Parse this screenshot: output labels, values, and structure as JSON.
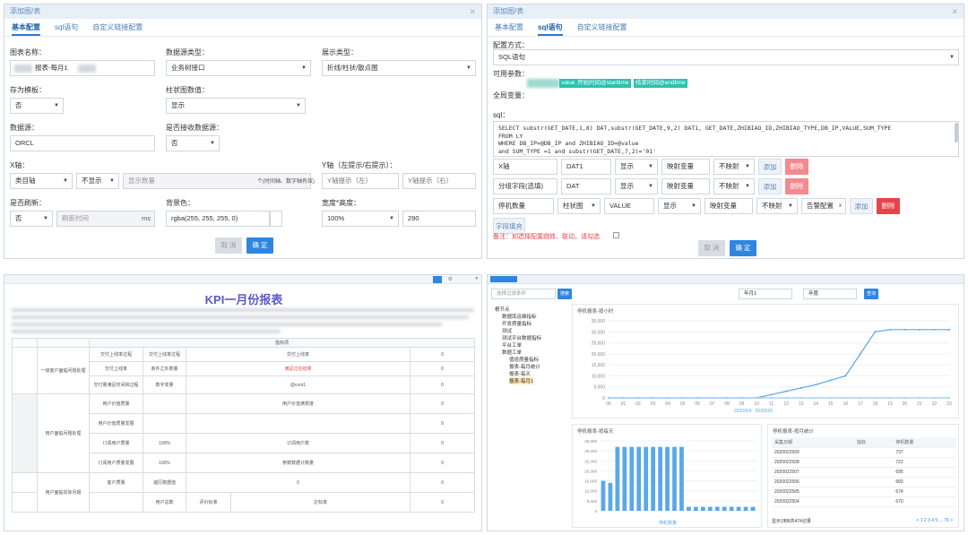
{
  "basic_dialog": {
    "title": "添加图/表",
    "tabs": [
      "基本配置",
      "sql语句",
      "自定义链接配置"
    ],
    "chart_name": {
      "label": "图表名称：",
      "value": "报表-每月1"
    },
    "datasource_type": {
      "label": "数据源类型：",
      "value": "业务树接口"
    },
    "display_type": {
      "label": "展示类型：",
      "value": "折线/柱状/散点图"
    },
    "save_template": {
      "label": "存为模板：",
      "value": "否"
    },
    "bar_value": {
      "label": "柱状图数值：",
      "value": "显示"
    },
    "datasource": {
      "label": "数据源：",
      "value": "ORCL"
    },
    "receive_datasource": {
      "label": "是否接收数据源：",
      "value": "否"
    },
    "x_axis": {
      "label": "X轴：",
      "category": "类目轴",
      "show": "不显示",
      "placeholder": "显示数量",
      "hint": "个(时间轴、数字轴有效)"
    },
    "y_axis": {
      "label": "Y轴（左提示/右提示）：",
      "left": "Y轴提示（左）",
      "right": "Y轴提示（右）"
    },
    "refresh": {
      "label": "是否刷新：",
      "value": "否",
      "placeholder": "刷新时间",
      "unit": "ms"
    },
    "bg_color": {
      "label": "背景色：",
      "value": "rgba(255, 255, 255, 0)"
    },
    "size": {
      "label": "宽度*高度：",
      "width": "100%",
      "height": "290"
    },
    "cancel": "取 消",
    "ok": "确 定"
  },
  "sql_dialog": {
    "title": "添加图/表",
    "tabs": [
      "基本配置",
      "sql语句",
      "自定义链接配置"
    ],
    "config_label": "配置方式：",
    "config_value": "SQL语句",
    "params_label": "可用参数：",
    "params": [
      "value",
      "开始时间@starttime",
      "结束时间@endtime"
    ],
    "global_label": "全局变量：",
    "sql_label": "sql：",
    "sql_lines": [
      "SELECT substr(GET_DATE,1,8) DAT,substr(GET_DATE,9,2) DAT1, GET_DATE,ZHIBIAO_ID,ZHIBIAO_TYPE,DB_IP,VALUE,SUM_TYPE",
      "FROM                    LY",
      "WHERE  DB_IP=@DB_IP  and ZHIBIAO_ID=@value",
      "and  SUM_TYPE =1 and substr(GET_DATE,7,2)='01'"
    ],
    "rows": [
      {
        "a": "X轴",
        "b": "DAT1",
        "c": "显示",
        "d": "映射变量",
        "e": "不映射",
        "add": "添加",
        "del": "删除"
      },
      {
        "a": "分组字段(选填)",
        "b": "DAT",
        "c": "显示",
        "d": "映射变量",
        "e": "不映射",
        "add": "添加",
        "del": "删除"
      },
      {
        "a": "停机数量",
        "b": "柱状图",
        "c": "VALUE",
        "d": "显示",
        "e": "映射变量",
        "f": "不映射",
        "g": "告警配置",
        "add": "添加",
        "del": "删除"
      }
    ],
    "fill_btn": "字段填充",
    "note": "备注：如选择配置跳转、联动，请勾选",
    "cancel": "取 消",
    "ok": "确 定"
  },
  "kpi_report": {
    "title": "KPI一月份报表",
    "header_cells": [
      "指标项",
      "得分"
    ],
    "rows": [
      [
        "一级客户面临问题处理",
        "交付上线率过程",
        "交付上线率过程",
        "交付上线率",
        "",
        "0"
      ],
      [
        "",
        "交付上线率",
        "条件之外数量",
        "满足过往结果",
        "",
        "0"
      ],
      [
        "",
        "交付量满足时间和过程",
        "数字变量",
        "@cont1",
        "",
        "0"
      ],
      [
        "用户面临问题处理",
        "用户价值质量",
        "",
        "用户价值满意度",
        "",
        "0"
      ],
      [
        "",
        "用户价值质量发展",
        "",
        "",
        "",
        "0"
      ],
      [
        "",
        "订阅用户质量",
        "100%",
        "订阅用户数",
        "",
        "0"
      ],
      [
        "",
        "订阅用户质量发展",
        "100%",
        "参数数据计数量",
        "",
        "0"
      ],
      [
        "用户面临实际问题",
        "客户质量",
        "遍历数据值",
        "0",
        "",
        "0"
      ],
      [
        "",
        "",
        "用户总数",
        "评价标准",
        "达标率",
        "0"
      ]
    ]
  },
  "dashboard": {
    "search_placeholder": "选择过滤条件",
    "search_btn": "搜索",
    "date_start": "年月1",
    "date_end": "年度",
    "query_btn": "查询",
    "tree": [
      "根节点",
      "数据库运维指标",
      "开发质量指标",
      "测试",
      "测试平台数据指标",
      "平台工单",
      "数据工单",
      "值班质量指标",
      "报表-每月统计",
      "报表-每天",
      "报表-每月1"
    ],
    "line_chart": {
      "title": "停机报表-按小时",
      "legend": [
        "2020024",
        "2020025"
      ]
    },
    "bar_chart": {
      "title": "停机报表-按每天",
      "legend": [
        "停机数量"
      ]
    },
    "table_card": {
      "title": "停机报表-按月统计",
      "headers": [
        "采集日期",
        "指标",
        "停机数量"
      ],
      "rows": [
        [
          "2020022509",
          "",
          "737"
        ],
        [
          "2020022508",
          "",
          "722"
        ],
        [
          "2020022507",
          "",
          "695"
        ],
        [
          "2020022506",
          "",
          "683"
        ],
        [
          "2020022505",
          "",
          "674"
        ],
        [
          "2020022504",
          "",
          "670"
        ]
      ],
      "footer": "显示1到6共474记录",
      "pager": "< 1 2 3 4 5 ... 79 >"
    }
  },
  "chart_data": [
    {
      "type": "line",
      "title": "停机报表-按小时",
      "x": [
        "00",
        "01",
        "02",
        "03",
        "04",
        "05",
        "06",
        "07",
        "08",
        "09",
        "10",
        "11",
        "12",
        "13",
        "14",
        "15",
        "16",
        "17",
        "18",
        "19",
        "20",
        "21",
        "22",
        "23"
      ],
      "ylim": [
        0,
        35000
      ],
      "series": [
        {
          "name": "2020024",
          "values": [
            0,
            0,
            0,
            0,
            0,
            0,
            0,
            0,
            0,
            0,
            0,
            1500,
            3000,
            4500,
            6000,
            8000,
            10000,
            20000,
            30000,
            31000,
            31000,
            31000,
            31000,
            31000
          ]
        },
        {
          "name": "2020025",
          "values": [
            0,
            0,
            0,
            0,
            0,
            0,
            0,
            0,
            0,
            0,
            0,
            0,
            0,
            0,
            0,
            0,
            0,
            0,
            0,
            0,
            0,
            0,
            0,
            0
          ]
        }
      ]
    },
    {
      "type": "bar",
      "title": "停机报表-按每天",
      "series": [
        {
          "name": "停机数量",
          "values": [
            15000,
            14000,
            32000,
            32000,
            32000,
            32000,
            32000,
            32000,
            32000,
            32000,
            32000,
            32000,
            2000,
            2000,
            2000,
            2000,
            2000,
            2000,
            2000,
            2000,
            2000,
            2000
          ]
        }
      ],
      "ylim": [
        0,
        35000
      ]
    }
  ]
}
